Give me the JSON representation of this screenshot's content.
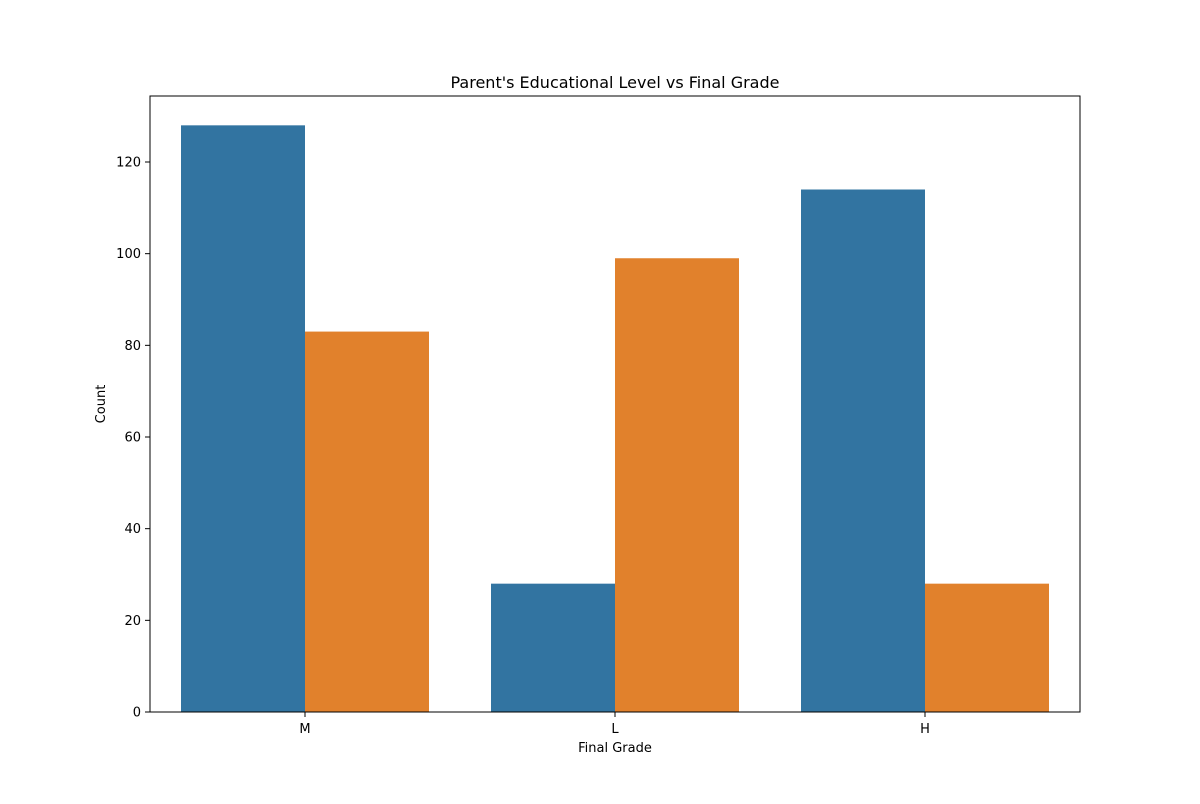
{
  "chart_data": {
    "type": "bar",
    "title": "Parent's Educational Level vs Final Grade",
    "xlabel": "Final Grade",
    "ylabel": "Count",
    "categories": [
      "M",
      "L",
      "H"
    ],
    "series": [
      {
        "values": [
          128,
          28,
          114
        ],
        "color": "#3274a1"
      },
      {
        "values": [
          83,
          99,
          28
        ],
        "color": "#e1812c"
      }
    ],
    "ylim": [
      0,
      134.4
    ],
    "yticks": [
      0,
      20,
      40,
      60,
      80,
      100,
      120
    ],
    "grid": false,
    "legend": "none"
  }
}
